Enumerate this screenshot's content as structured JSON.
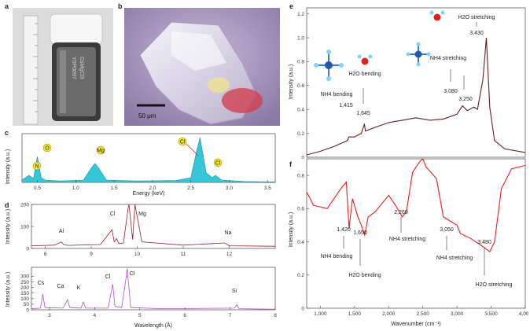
{
  "panels": {
    "a": {
      "letter": "a",
      "vial_text_1": "CsMgCl3",
      "vial_text_2": "Y0P0097"
    },
    "b": {
      "letter": "b",
      "scale_bar": "50 μm"
    },
    "c": {
      "letter": "c",
      "xlabel": "Energy (keV)",
      "ylabel": "Intensity (a.u.)",
      "peaks": [
        "N",
        "O",
        "Mg",
        "Cl",
        "Cl"
      ]
    },
    "d": {
      "letter": "d",
      "xlabel": "Wavelength (Å)",
      "ylabel": "Intensity (a.u.)",
      "top_peaks": [
        "Al",
        "Cl",
        "Mg",
        "Na"
      ],
      "bottom_peaks": [
        "Cs",
        "Ca",
        "K",
        "Cl",
        "Cl",
        "Si"
      ]
    },
    "e": {
      "letter": "e",
      "ylabel": "Intensity (a.u.)",
      "labels": {
        "nh4_bending": "NH4 bending",
        "h2o_bending": "H2O bending",
        "nh4_stretching": "NH4 stretching",
        "h2o_stretching": "H2O stretching"
      },
      "peak_values": [
        "1,415",
        "1,645",
        "3,080",
        "3,250",
        "3,430"
      ]
    },
    "f": {
      "letter": "f",
      "xlabel": "Wavenumber (cm⁻¹)",
      "ylabel": "Intensity (a.u.)",
      "labels": {
        "nh4_bending": "NH4 bending",
        "h2o_bending": "H2O bending",
        "nh4_stretching_1": "NH4 stretching",
        "nh4_stretching_2": "NH4 stretching",
        "h2o_stretching": "H2O stretching"
      },
      "peak_values": [
        "1,420",
        "1,650",
        "2,260",
        "3,050",
        "3,480"
      ]
    }
  },
  "chart_data": [
    {
      "panel": "c",
      "type": "line",
      "xlabel": "Energy (keV)",
      "ylabel": "Intensity (a.u.)",
      "xlim": [
        0.3,
        3.6
      ],
      "xticks": [
        0.5,
        1.0,
        1.5,
        2.0,
        2.5,
        3.0,
        3.5
      ],
      "x": [
        0.3,
        0.39,
        0.45,
        0.5,
        0.55,
        0.6,
        0.8,
        1.1,
        1.2,
        1.25,
        1.3,
        1.4,
        1.8,
        2.3,
        2.5,
        2.58,
        2.62,
        2.7,
        2.78,
        2.82,
        2.9,
        3.2,
        3.6
      ],
      "y": [
        0.05,
        0.15,
        0.08,
        0.55,
        0.1,
        0.05,
        0.03,
        0.05,
        0.3,
        0.4,
        0.3,
        0.05,
        0.03,
        0.04,
        0.1,
        0.7,
        0.95,
        0.2,
        0.1,
        0.15,
        0.05,
        0.02,
        0.01
      ],
      "color": "#35c7d8"
    },
    {
      "panel": "d-top",
      "type": "line",
      "xlabel": "",
      "ylabel": "Intensity (a.u.)",
      "xlim": [
        7.7,
        13
      ],
      "ylim": [
        0,
        200
      ],
      "xticks": [
        8,
        9,
        10,
        11,
        12
      ],
      "yticks": [
        0,
        100,
        200
      ],
      "x": [
        7.7,
        8.2,
        8.35,
        8.4,
        8.5,
        9.2,
        9.45,
        9.5,
        9.55,
        9.6,
        9.7,
        9.8,
        9.82,
        9.9,
        9.95,
        10.1,
        11,
        11.9,
        12,
        13
      ],
      "y": [
        12,
        15,
        30,
        18,
        14,
        18,
        85,
        30,
        45,
        22,
        25,
        180,
        200,
        40,
        200,
        30,
        15,
        25,
        12,
        10
      ],
      "color": "#9a1c2a"
    },
    {
      "panel": "d-bottom",
      "type": "line",
      "xlabel": "Wavelength (Å)",
      "ylabel": "Intensity (a.u.)",
      "xlim": [
        2.6,
        8
      ],
      "ylim": [
        0,
        380
      ],
      "xticks": [
        3,
        4,
        5,
        6,
        7,
        8
      ],
      "yticks": [
        0,
        50,
        100,
        150,
        200,
        250,
        300
      ],
      "x": [
        2.6,
        2.8,
        2.85,
        2.9,
        3.3,
        3.4,
        3.45,
        3.7,
        3.75,
        3.8,
        4.3,
        4.4,
        4.45,
        4.6,
        4.7,
        4.72,
        4.8,
        5.5,
        7.1,
        7.15,
        7.2,
        8
      ],
      "y": [
        10,
        15,
        140,
        20,
        15,
        90,
        20,
        15,
        70,
        15,
        15,
        230,
        30,
        20,
        300,
        370,
        20,
        10,
        15,
        45,
        10,
        5
      ],
      "color": "#b64bd0"
    },
    {
      "panel": "e",
      "type": "line",
      "xlabel": "",
      "ylabel": "Intensity (a.u.)",
      "xlim": [
        800,
        4000
      ],
      "ylim": [
        0,
        1.25
      ],
      "yticks": [
        0,
        0.2,
        0.4,
        0.6,
        0.8,
        1.0,
        1.2
      ],
      "x": [
        800,
        1000,
        1200,
        1400,
        1415,
        1500,
        1600,
        1640,
        1645,
        1660,
        1800,
        2000,
        2200,
        2400,
        2600,
        2800,
        3000,
        3080,
        3150,
        3250,
        3300,
        3380,
        3430,
        3480,
        3550,
        3700,
        4000
      ],
      "y": [
        0.02,
        0.05,
        0.09,
        0.14,
        0.17,
        0.17,
        0.2,
        0.27,
        0.28,
        0.22,
        0.25,
        0.29,
        0.31,
        0.33,
        0.31,
        0.32,
        0.36,
        0.43,
        0.39,
        0.42,
        0.4,
        0.65,
        1.0,
        0.42,
        0.14,
        0.07,
        0.04
      ],
      "color": "#6a1c1c"
    },
    {
      "panel": "f",
      "type": "line",
      "xlabel": "Wavenumber (cm⁻¹)",
      "ylabel": "Intensity (a.u.)",
      "xlim": [
        800,
        4000
      ],
      "ylim": [
        0,
        0.9
      ],
      "yticks": [
        0,
        0.2,
        0.4,
        0.6,
        0.8
      ],
      "xticks": [
        1000,
        1500,
        2000,
        2500,
        3000,
        3500,
        4000
      ],
      "x": [
        800,
        900,
        1100,
        1300,
        1380,
        1420,
        1470,
        1550,
        1600,
        1650,
        1700,
        1800,
        2000,
        2100,
        2200,
        2260,
        2350,
        2450,
        2500,
        2550,
        2700,
        2800,
        3000,
        3050,
        3200,
        3350,
        3480,
        3550,
        3650,
        3800,
        4000
      ],
      "y": [
        0.7,
        0.62,
        0.6,
        0.72,
        0.76,
        0.48,
        0.66,
        0.55,
        0.5,
        0.44,
        0.55,
        0.58,
        0.68,
        0.62,
        0.55,
        0.58,
        0.82,
        0.88,
        0.9,
        0.85,
        0.78,
        0.55,
        0.5,
        0.45,
        0.42,
        0.38,
        0.34,
        0.4,
        0.72,
        0.84,
        0.86
      ],
      "color": "#ee1c1c"
    }
  ]
}
